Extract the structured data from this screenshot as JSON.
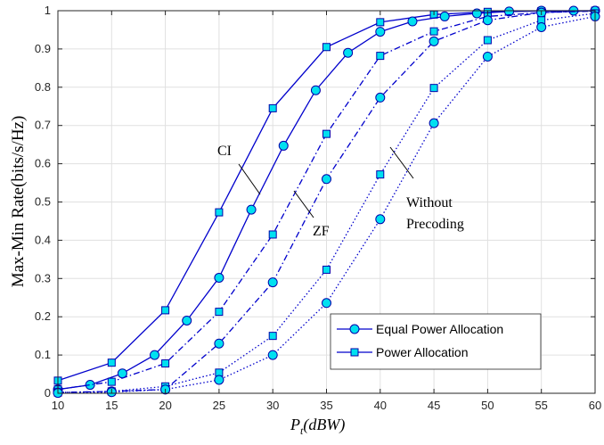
{
  "chart_data": {
    "type": "line",
    "xlabel": "P_t(dBW)",
    "xlabel_main": "P",
    "xlabel_sub": "t",
    "xlabel_unit": "(dBW)",
    "ylabel": "Max-Min Rate(bits/s/Hz)",
    "xlim": [
      10,
      60
    ],
    "ylim": [
      0,
      1
    ],
    "xticks": [
      10,
      15,
      20,
      25,
      30,
      35,
      40,
      45,
      50,
      55,
      60
    ],
    "yticks": [
      0,
      0.1,
      0.2,
      0.3,
      0.4,
      0.5,
      0.6,
      0.7,
      0.8,
      0.9,
      1
    ],
    "grid": true,
    "legend_position": "bottom-right",
    "legend": [
      {
        "label": "Equal Power Allocation",
        "marker": "circle"
      },
      {
        "label": "Power Allocation",
        "marker": "square"
      }
    ],
    "annotations": {
      "ci": "CI",
      "zf": "ZF",
      "without_1": "Without",
      "without_2": "Precoding"
    },
    "colors": {
      "line": "#0000cc",
      "marker_fill": "#00e0f0",
      "marker_edge": "#0000aa",
      "grid": "#e0e0e0",
      "axis": "#262626"
    },
    "series": [
      {
        "scheme": "CI",
        "allocation": "Power Allocation",
        "style": "solid",
        "marker": "square",
        "x": [
          10,
          15,
          20,
          25,
          30,
          35,
          40,
          45,
          50,
          55,
          60
        ],
        "y": [
          0.033,
          0.08,
          0.217,
          0.473,
          0.745,
          0.905,
          0.97,
          0.99,
          0.997,
          0.999,
          1.0
        ],
        "markers": [
          10,
          15,
          20,
          25,
          30,
          35,
          40,
          45,
          50,
          55,
          60
        ]
      },
      {
        "scheme": "CI",
        "allocation": "Equal Power Allocation",
        "style": "solid",
        "marker": "circle",
        "x": [
          10,
          13,
          16,
          19,
          22,
          25,
          28,
          31,
          34,
          37,
          40,
          43,
          46,
          49,
          52,
          55,
          58,
          60
        ],
        "y": [
          0.01,
          0.022,
          0.052,
          0.1,
          0.19,
          0.302,
          0.48,
          0.647,
          0.792,
          0.89,
          0.945,
          0.972,
          0.985,
          0.993,
          0.998,
          1.0,
          1.0,
          1.0
        ],
        "markers": [
          10,
          13,
          16,
          19,
          22,
          25,
          28,
          31,
          34,
          37,
          40,
          43,
          46,
          49,
          52,
          55,
          58,
          60
        ]
      },
      {
        "scheme": "ZF",
        "allocation": "Power Allocation",
        "style": "dashdot",
        "marker": "square",
        "x": [
          10,
          15,
          20,
          25,
          30,
          35,
          40,
          45,
          50,
          55,
          60
        ],
        "y": [
          0.01,
          0.03,
          0.078,
          0.213,
          0.415,
          0.678,
          0.882,
          0.946,
          0.985,
          0.995,
          0.999
        ],
        "markers": [
          10,
          15,
          20,
          25,
          30,
          35,
          40,
          45,
          50,
          55,
          60
        ]
      },
      {
        "scheme": "ZF",
        "allocation": "Equal Power Allocation",
        "style": "dashdot",
        "marker": "circle",
        "x": [
          10,
          15,
          20,
          25,
          30,
          35,
          40,
          45,
          50,
          55,
          60
        ],
        "y": [
          0.002,
          0.005,
          0.01,
          0.13,
          0.29,
          0.56,
          0.773,
          0.92,
          0.975,
          0.995,
          1.0
        ],
        "markers": [
          10,
          15,
          20,
          25,
          30,
          35,
          40,
          45,
          50,
          55,
          60
        ]
      },
      {
        "scheme": "Without Precoding",
        "allocation": "Power Allocation",
        "style": "dotted",
        "marker": "square",
        "x": [
          10,
          15,
          20,
          25,
          30,
          35,
          40,
          45,
          50,
          55,
          60
        ],
        "y": [
          0.002,
          0.005,
          0.018,
          0.054,
          0.15,
          0.323,
          0.572,
          0.798,
          0.923,
          0.975,
          0.993
        ],
        "markers": [
          10,
          15,
          20,
          25,
          30,
          35,
          40,
          45,
          50,
          55,
          60
        ]
      },
      {
        "scheme": "Without Precoding",
        "allocation": "Equal Power Allocation",
        "style": "dotted",
        "marker": "circle",
        "x": [
          10,
          15,
          20,
          25,
          30,
          35,
          40,
          45,
          50,
          55,
          60
        ],
        "y": [
          0.001,
          0.003,
          0.01,
          0.035,
          0.1,
          0.236,
          0.455,
          0.706,
          0.88,
          0.957,
          0.985
        ],
        "markers": [
          10,
          15,
          20,
          25,
          30,
          35,
          40,
          45,
          50,
          55,
          60
        ]
      }
    ]
  }
}
